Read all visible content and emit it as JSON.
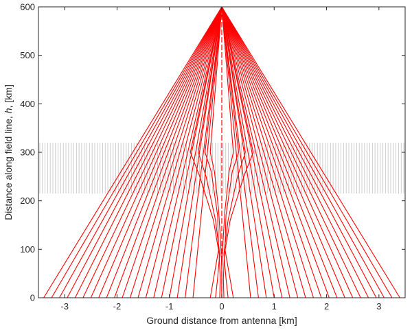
{
  "chart_data": {
    "type": "line",
    "xlabel": "Ground distance from antenna [km]",
    "ylabel_parts": [
      "Distance along field line, ",
      "h",
      ", [km]"
    ],
    "xlim": [
      -3.5,
      3.5
    ],
    "ylim": [
      0,
      600
    ],
    "xticks": [
      -3,
      -2,
      -1,
      0,
      1,
      2,
      3
    ],
    "xtick_labels": [
      "-3",
      "-2",
      "-1",
      "0",
      "1",
      "2",
      "3"
    ],
    "yticks": [
      0,
      100,
      200,
      300,
      400,
      500,
      600
    ],
    "ytick_labels": [
      "0",
      "100",
      "200",
      "300",
      "400",
      "500",
      "600"
    ],
    "grid": false,
    "colors": {
      "rays": "#ff0000",
      "layer": "#9a9a9a",
      "axes": "#262626"
    },
    "source_point": {
      "x": 0,
      "h": 600
    },
    "ray_series": {
      "description": "straight rays diverging from the source point at h = 600 km down to the ground, symmetric about x = 0",
      "ground_endpoints_km": [
        3.4,
        3.25,
        3.1,
        2.95,
        2.8,
        2.65,
        2.5,
        2.35,
        2.2,
        2.05,
        1.9,
        1.75,
        1.6,
        1.45,
        1.3,
        1.15,
        1.0,
        0.85,
        0.7,
        0.55
      ]
    },
    "focused_rays": {
      "description": "rays refracted by the layer, converging toward the field line",
      "rays": [
        {
          "h": [
            600,
            300,
            250,
            160,
            90,
            40,
            0
          ],
          "x": [
            0.0,
            0.6,
            0.42,
            0.16,
            0.05,
            0.03,
            0.04
          ]
        },
        {
          "h": [
            600,
            300,
            250,
            160,
            90,
            40,
            0
          ],
          "x": [
            0.0,
            0.45,
            0.3,
            0.12,
            0.04,
            0.08,
            0.12
          ]
        },
        {
          "h": [
            600,
            300,
            260,
            170,
            100,
            50,
            0
          ],
          "x": [
            0.0,
            0.32,
            0.2,
            0.08,
            0.06,
            0.14,
            0.22
          ]
        },
        {
          "h": [
            600,
            300,
            260,
            180,
            110,
            60,
            0
          ],
          "x": [
            0.0,
            0.22,
            0.14,
            0.06,
            0.02,
            0.0,
            0.0
          ]
        }
      ]
    },
    "irregularity_layer": {
      "description": "field-aligned density striations",
      "h_range": [
        215,
        320
      ],
      "x_range": [
        -3.5,
        3.5
      ],
      "count": 140
    }
  }
}
